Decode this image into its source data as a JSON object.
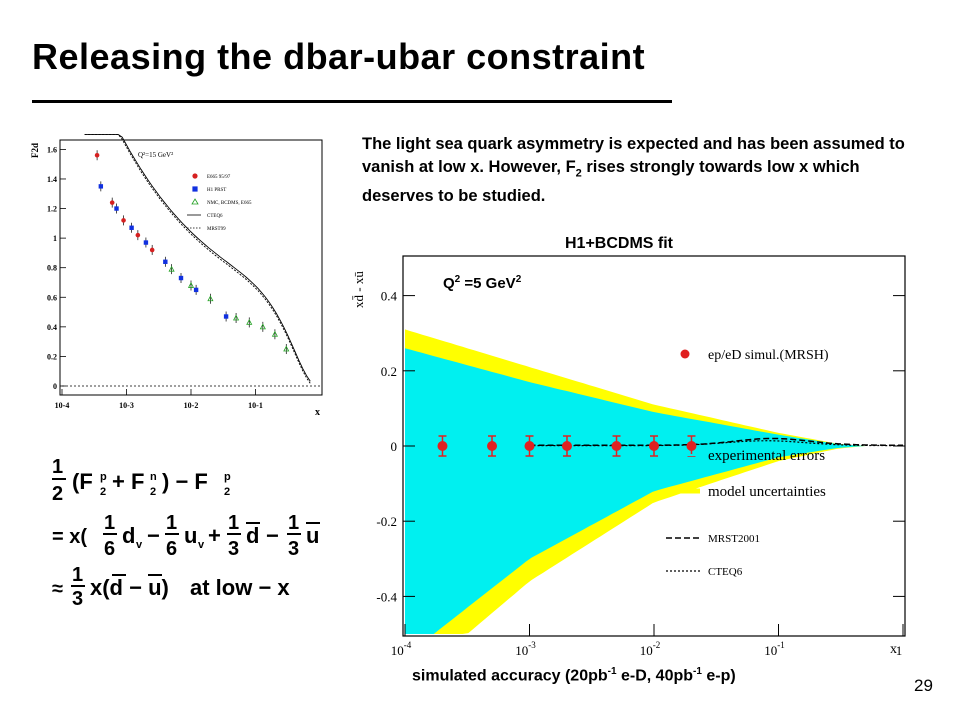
{
  "slide": {
    "title": "Releasing the dbar-ubar constraint",
    "description_pre": "The light sea quark asymmetry is expected and has been assumed to vanish at low x. However, F",
    "description_sub": "2",
    "description_post": " rises strongly towards low x which deserves to be studied.",
    "caption_a": "simulated accuracy (20pb",
    "caption_sup1": "-1",
    "caption_b": " e-D, 40pb",
    "caption_sup2": "-1",
    "caption_c": " e-p)",
    "page_number": "29"
  },
  "formula": {
    "line1": "1/2 (F2p + F2n) − F2p",
    "line2": "= x(1/6 dv − 1/6 uv + 1/3 d̄ − 1/3 ū",
    "line3": "≈ 1/3 x(d̄ − ū) at low − x"
  },
  "chart_data": [
    {
      "type": "scatter",
      "title": "",
      "annotation": "Q²=15 GeV²",
      "ylabel": "F2d",
      "xlabel": "x",
      "xscale": "log",
      "xlim": [
        0.0001,
        1
      ],
      "ylim": [
        0,
        1.65
      ],
      "xtick_labels": [
        "10-4",
        "10-3",
        "10-2",
        "10-1"
      ],
      "ytick_labels": [
        "0",
        "0.2",
        "0.4",
        "0.6",
        "0.8",
        "1",
        "1.2",
        "1.4",
        "1.6"
      ],
      "legend": [
        "E665 95/97",
        "H1 PRST",
        "NMC, BCDMS, E665",
        "CTEQ6",
        "MRST99"
      ],
      "series": [
        {
          "name": "E665 95/97",
          "color": "#d62020",
          "x": [
            0.00035,
            0.0006,
            0.0009,
            0.0015,
            0.0025
          ],
          "y": [
            1.56,
            1.24,
            1.12,
            1.02,
            0.92
          ]
        },
        {
          "name": "H1 PRST",
          "color": "#1030e0",
          "x": [
            0.0004,
            0.0007,
            0.0012,
            0.002,
            0.004,
            0.007,
            0.012,
            0.035
          ],
          "y": [
            1.35,
            1.2,
            1.07,
            0.97,
            0.84,
            0.73,
            0.65,
            0.47
          ]
        },
        {
          "name": "NMC, BCDMS, E665",
          "color": "#20a020",
          "x": [
            0.005,
            0.01,
            0.02,
            0.05,
            0.08,
            0.13,
            0.2,
            0.3
          ],
          "y": [
            0.79,
            0.68,
            0.59,
            0.46,
            0.43,
            0.4,
            0.35,
            0.25
          ]
        }
      ]
    },
    {
      "type": "area",
      "title": "H1+BCDMS  fit",
      "annotation_q2_base": "Q",
      "annotation_q2_sup": "2",
      "annotation_q2_mid": " =5 GeV",
      "annotation_q2_sup2": "2",
      "ylabel": "xd̄ - xū",
      "xlabel": "x",
      "xscale": "log",
      "xlim": [
        0.0001,
        1
      ],
      "ylim": [
        -0.5,
        0.5
      ],
      "xtick_labels": [
        "10",
        "10",
        "10",
        "10",
        "1"
      ],
      "xtick_exps": [
        "-4",
        "-3",
        "-2",
        "-1",
        ""
      ],
      "ytick_labels": [
        "0.4",
        "0.2",
        "0",
        "-0.2",
        "-0.4"
      ],
      "legend": [
        "ep/eD simul.(MRSH)",
        "experimental errors",
        "model uncertainties",
        "MRST2001",
        "CTEQ6"
      ],
      "colors": {
        "experimental": "#00f0f0",
        "model": "#ffff00",
        "points": "#e02020"
      },
      "points": {
        "x": [
          0.0002,
          0.0005,
          0.001,
          0.002,
          0.005,
          0.01,
          0.02
        ],
        "y": [
          0,
          0,
          0,
          0,
          0,
          0,
          0
        ]
      },
      "exp_band": {
        "x": [
          0.0001,
          0.001,
          0.01,
          0.1,
          0.3,
          0.5
        ],
        "upper": [
          0.26,
          0.17,
          0.09,
          0.03,
          0.005,
          0
        ],
        "lower": [
          -0.56,
          -0.3,
          -0.12,
          -0.03,
          -0.005,
          0
        ]
      },
      "model_band": {
        "x": [
          0.0001,
          0.001,
          0.01,
          0.1,
          0.3,
          0.5
        ],
        "upper": [
          0.31,
          0.21,
          0.11,
          0.035,
          0.006,
          0
        ],
        "lower": [
          -0.64,
          -0.36,
          -0.15,
          -0.04,
          -0.007,
          0
        ]
      }
    }
  ]
}
